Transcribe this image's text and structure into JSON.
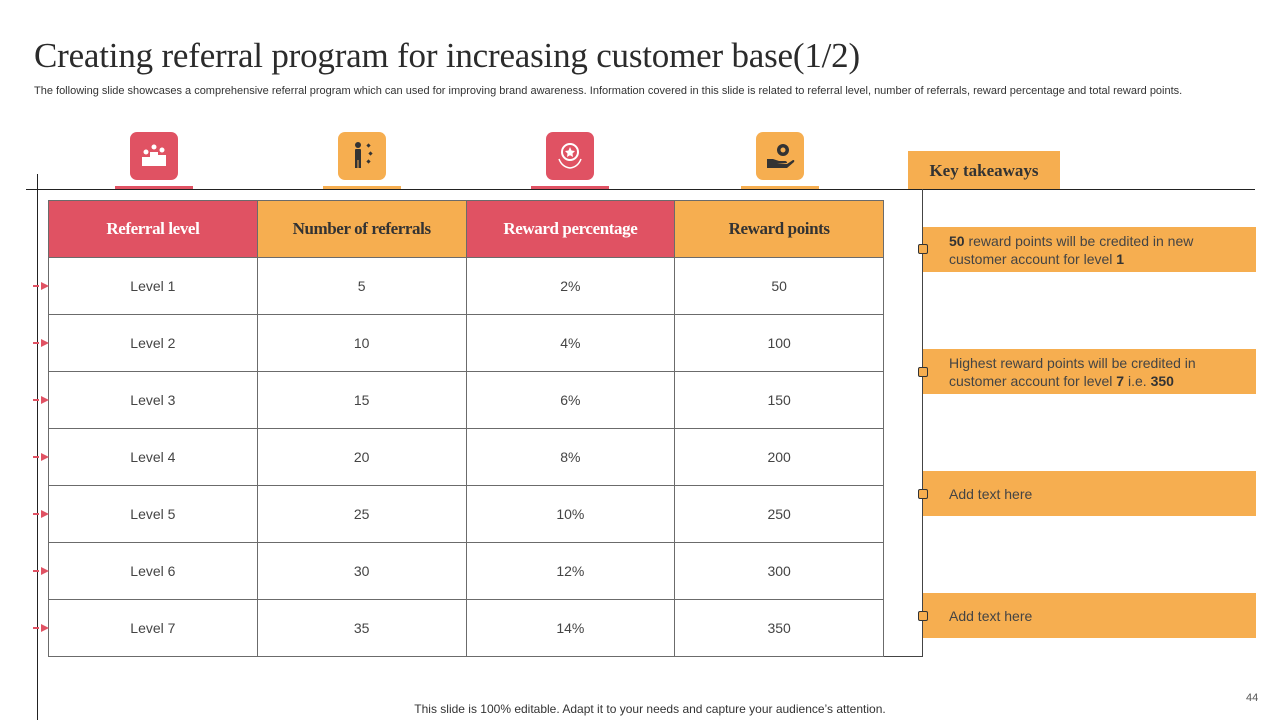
{
  "title": "Creating referral program for increasing customer base(1/2)",
  "subtitle": "The following slide showcases a comprehensive referral program which can used for improving brand awareness. Information covered in this slide is related to referral level, number of referrals, reward percentage and total reward points.",
  "colors": {
    "red": "#e05263",
    "orange": "#f6ae50"
  },
  "icons": [
    "podium-icon",
    "person-steps-icon",
    "award-badge-icon",
    "hand-gear-icon"
  ],
  "table": {
    "headers": [
      "Referral level",
      "Number of referrals",
      "Reward percentage",
      "Reward points"
    ],
    "rows": [
      [
        "Level 1",
        "5",
        "2%",
        "50"
      ],
      [
        "Level 2",
        "10",
        "4%",
        "100"
      ],
      [
        "Level 3",
        "15",
        "6%",
        "150"
      ],
      [
        "Level 4",
        "20",
        "8%",
        "200"
      ],
      [
        "Level 5",
        "25",
        "10%",
        "250"
      ],
      [
        "Level 6",
        "30",
        "12%",
        "300"
      ],
      [
        "Level 7",
        "35",
        "14%",
        "350"
      ]
    ]
  },
  "key_takeaways": {
    "title": "Key takeaways",
    "item1": {
      "bold1": "50",
      "text1": " reward points will be credited in new customer account for level ",
      "bold2": "1"
    },
    "item2": {
      "text1": "Highest reward points will be credited in customer account for level ",
      "bold1": "7",
      "text2": " i.e. ",
      "bold2": "350"
    },
    "item3": "Add text here",
    "item4": "Add text here"
  },
  "footer": "This slide is 100% editable. Adapt it to your needs and capture your audience’s attention.",
  "page_number": "44"
}
